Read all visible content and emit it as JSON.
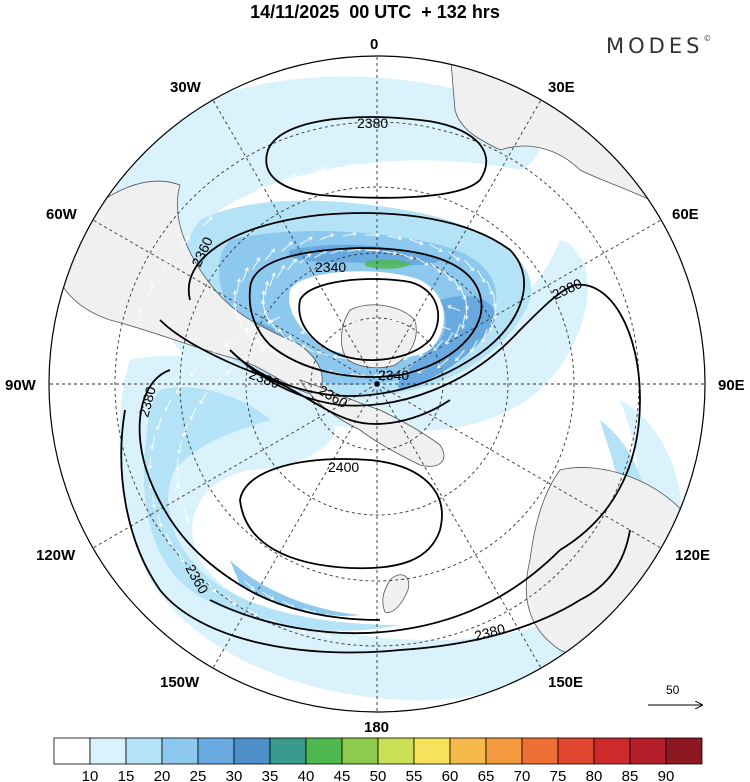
{
  "title": "14/11/2025  00 UTC  + 132 hrs",
  "brand": "MODES",
  "brand_mark": "©",
  "longitude_labels": {
    "lon_0": "0",
    "lon_30e": "30E",
    "lon_60e": "60E",
    "lon_90e": "90E",
    "lon_120e": "120E",
    "lon_150e": "150E",
    "lon_180": "180",
    "lon_150w": "150W",
    "lon_120w": "120W",
    "lon_90w": "90W",
    "lon_60w": "60W",
    "lon_30w": "30W"
  },
  "contour_labels": {
    "c2380_top": "2380",
    "c2360_left": "2360",
    "c2340_inner": "2340",
    "c2380_right": "2380",
    "c2380_mid": "2380",
    "c2340_center": "2340",
    "c2360_center": "2360",
    "c2380_west": "2380",
    "c2400": "2400",
    "c2360_south": "2360",
    "c2380_bottom": "2380"
  },
  "vector_reference": "50",
  "colorbar": {
    "ticks": [
      "10",
      "15",
      "20",
      "25",
      "30",
      "35",
      "40",
      "45",
      "50",
      "55",
      "60",
      "65",
      "70",
      "75",
      "80",
      "85",
      "90"
    ],
    "colors": [
      "#ffffff",
      "#d9f2fc",
      "#b4e2f7",
      "#8dc9ee",
      "#68aadf",
      "#4f8fc9",
      "#3a9a8c",
      "#4fb84f",
      "#8dcb4e",
      "#c9df56",
      "#f7e25b",
      "#f5b84a",
      "#f39a3e",
      "#ee7034",
      "#e0472f",
      "#cf2a2c",
      "#b41d2a",
      "#8e1822"
    ]
  }
}
